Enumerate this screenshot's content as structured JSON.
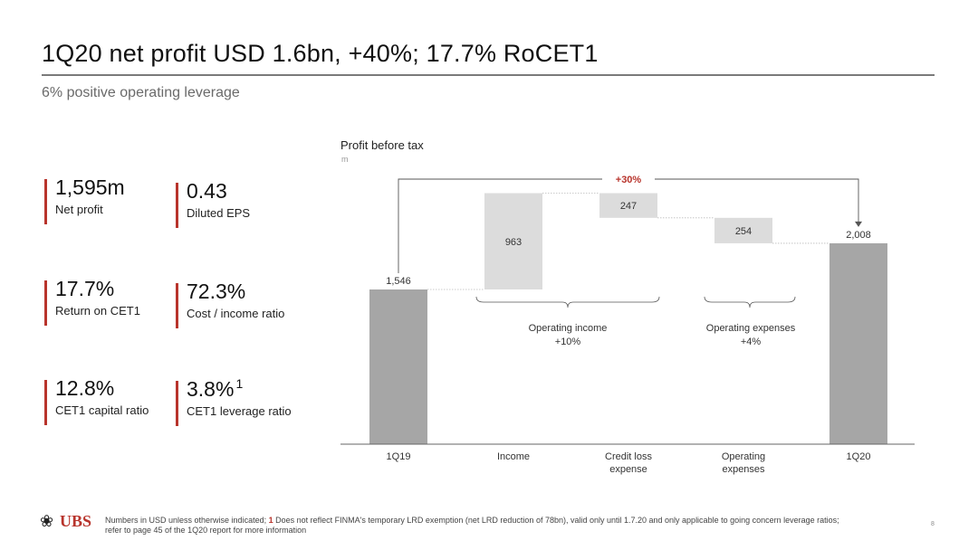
{
  "header": {
    "title": "1Q20 net profit USD 1.6bn, +40%; 17.7% RoCET1",
    "subtitle": "6% positive operating leverage"
  },
  "kpis": [
    {
      "value": "1,595m",
      "label": "Net profit"
    },
    {
      "value": "0.43",
      "label": "Diluted EPS"
    },
    {
      "value": "17.7%",
      "label": "Return on CET1"
    },
    {
      "value": "72.3%",
      "label": "Cost / income ratio"
    },
    {
      "value": "12.8%",
      "label": "CET1 capital ratio"
    },
    {
      "value": "3.8%",
      "sup": "1",
      "label": "CET1 leverage ratio"
    }
  ],
  "chart": {
    "title": "Profit before tax",
    "unit": "m"
  },
  "chart_data": {
    "type": "waterfall",
    "categories": [
      "1Q19",
      "Income",
      "Credit loss expense",
      "Operating expenses",
      "1Q20"
    ],
    "category_lines": [
      [
        "1Q19"
      ],
      [
        "Income"
      ],
      [
        "Credit loss",
        "expense"
      ],
      [
        "Operating",
        "expenses"
      ],
      [
        "1Q20"
      ]
    ],
    "bars": [
      {
        "kind": "total",
        "value": 1546,
        "label": "1,546"
      },
      {
        "kind": "delta",
        "value": 963,
        "label": "963"
      },
      {
        "kind": "delta",
        "value": -247,
        "label": "247"
      },
      {
        "kind": "delta",
        "value": -254,
        "label": "254"
      },
      {
        "kind": "total",
        "value": 2008,
        "label": "2,008"
      }
    ],
    "annotations": [
      {
        "text": "+30%",
        "type": "change-arrow",
        "from": "1Q19",
        "to": "1Q20"
      },
      {
        "text": [
          "Operating income",
          "+10%"
        ],
        "type": "brace",
        "span": [
          "Income",
          "Credit loss expense"
        ]
      },
      {
        "text": [
          "Operating expenses",
          "+4%"
        ],
        "type": "brace",
        "span": [
          "Operating expenses"
        ]
      }
    ],
    "colors": {
      "total": "#a6a6a6",
      "delta": "#dcdcdc",
      "accent": "#b8342c"
    }
  },
  "footer": {
    "logo_text": "UBS",
    "logo_icon": "keys-icon",
    "note_ref": "1",
    "note_line1a": "Numbers in USD unless otherwise indicated; ",
    "note_line1b": " Does not reflect FINMA's temporary LRD exemption (net LRD reduction of 78bn), valid only until 1.7.20 and only applicable to going concern leverage ratios;",
    "note_line2": "refer to page 45 of the 1Q20 report for more information",
    "page_number": "8"
  }
}
